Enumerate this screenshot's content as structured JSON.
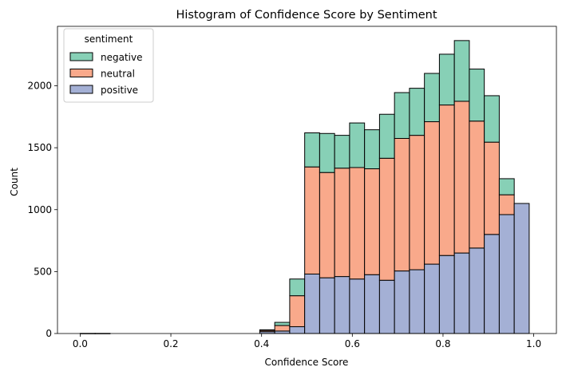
{
  "chart_data": {
    "type": "bar",
    "stacked": true,
    "title": "Histogram of Confidence Score by Sentiment",
    "xlabel": "Confidence Score",
    "ylabel": "Count",
    "xlim": [
      -0.05,
      1.05
    ],
    "ylim": [
      0,
      2480
    ],
    "xticks": [
      0.0,
      0.2,
      0.4,
      0.6,
      0.8,
      1.0
    ],
    "xtick_labels": [
      "0.0",
      "0.2",
      "0.4",
      "0.6",
      "0.8",
      "1.0"
    ],
    "yticks": [
      0,
      500,
      1000,
      1500,
      2000
    ],
    "ytick_labels": [
      "0",
      "500",
      "1000",
      "1500",
      "2000"
    ],
    "grid": false,
    "legend": {
      "title": "sentiment",
      "placement": "top-left",
      "entries": [
        "negative",
        "neutral",
        "positive"
      ]
    },
    "bin_width": 0.033,
    "bin_left_edges": [
      0.0,
      0.033,
      0.066,
      0.099,
      0.132,
      0.165,
      0.198,
      0.231,
      0.264,
      0.297,
      0.33,
      0.363,
      0.396,
      0.429,
      0.462,
      0.495,
      0.528,
      0.561,
      0.594,
      0.627,
      0.66,
      0.693,
      0.726,
      0.759,
      0.792,
      0.825,
      0.858,
      0.891,
      0.924,
      0.957
    ],
    "series": [
      {
        "name": "positive",
        "color": "#a4b0d5",
        "values": [
          1,
          1,
          0,
          0,
          0,
          0,
          0,
          0,
          0,
          0,
          0,
          0,
          15,
          20,
          55,
          480,
          450,
          460,
          440,
          475,
          430,
          505,
          515,
          560,
          630,
          650,
          690,
          800,
          960,
          1050
        ]
      },
      {
        "name": "neutral",
        "color": "#f9a98b",
        "values": [
          0,
          0,
          0,
          0,
          0,
          0,
          0,
          0,
          0,
          0,
          0,
          0,
          10,
          45,
          250,
          865,
          850,
          875,
          900,
          855,
          985,
          1070,
          1085,
          1150,
          1215,
          1225,
          1025,
          745,
          160,
          0
        ]
      },
      {
        "name": "negative",
        "color": "#87d0b6",
        "values": [
          0,
          0,
          0,
          0,
          0,
          0,
          0,
          0,
          0,
          0,
          0,
          0,
          5,
          25,
          135,
          275,
          315,
          265,
          360,
          315,
          355,
          370,
          380,
          390,
          410,
          490,
          420,
          375,
          130,
          0
        ]
      }
    ]
  }
}
